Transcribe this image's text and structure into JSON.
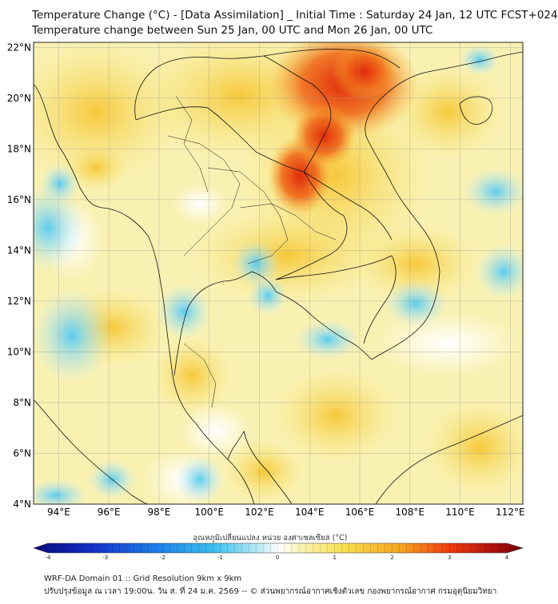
{
  "header": {
    "title_line1": "Temperature Change (°C) - [Data Assimilation] _ Initial Time : Saturday 24 Jan, 12 UTC FCST+024",
    "title_line2": "Temperature change between Sun 25 Jan, 00 UTC and Mon 26 Jan, 00 UTC"
  },
  "map": {
    "lon_range": [
      93,
      112.5
    ],
    "lat_range": [
      4,
      22.2
    ],
    "lon_ticks": [
      "94°E",
      "96°E",
      "98°E",
      "100°E",
      "102°E",
      "104°E",
      "106°E",
      "108°E",
      "110°E",
      "112°E"
    ],
    "lat_ticks": [
      "22°N",
      "20°N",
      "18°N",
      "16°N",
      "14°N",
      "12°N",
      "10°N",
      "8°N",
      "6°N",
      "4°N"
    ],
    "field_colors": {
      "cold": "#6fd3f2",
      "neutral": "#f7f7e6",
      "warm": "#f5d742",
      "hot": "#e03010"
    }
  },
  "colorbar": {
    "label": "อุณหภูมิเปลี่ยนแปลง หน่วย องศาเซลเซียส (°C)",
    "ticks": [
      "-4",
      "-3",
      "-2",
      "-1",
      "0",
      "1",
      "2",
      "3",
      "4"
    ],
    "range": [
      -4,
      4
    ]
  },
  "footer": {
    "line1": "WRF-DA Domain 01 :: Grid Resolution 9km x 9km",
    "line2": "ปรับปรุงข้อมูล ณ เวลา 19:00น. วัน ส. ที่ 24 ม.ค. 2569 -- © ส่วนพยากรณ์อากาศเชิงตัวเลข กองพยากรณ์อากาศ กรมอุตุนิยมวิทยา"
  }
}
